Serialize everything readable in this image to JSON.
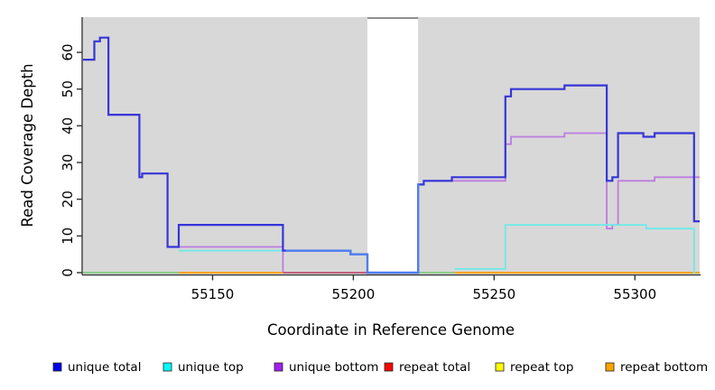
{
  "figure": {
    "background": "#ffffff",
    "plot_background": "#d8d8d8",
    "axis_color": "#333333",
    "text_color": "#000000"
  },
  "chart_data": {
    "type": "line",
    "subtype": "step-coverage",
    "title": "",
    "xlabel": "Coordinate in Reference Genome",
    "ylabel": "Read Coverage Depth",
    "xlim": [
      55104,
      55323
    ],
    "ylim": [
      0,
      69.6
    ],
    "x_ticks": [
      55150,
      55200,
      55250,
      55300
    ],
    "y_ticks": [
      0,
      10,
      20,
      30,
      40,
      50,
      60
    ],
    "grid": false,
    "legend_position": "bottom",
    "masked_region": {
      "from": 55205,
      "to": 55223,
      "fill": "#ffffff",
      "top_edge_color": "#8f8f8f"
    },
    "zero_line_segments": [
      {
        "from": 55104,
        "to": 55138,
        "color": "#8ccb8c",
        "note": "unique top + repeat top overlap at 0"
      },
      {
        "from": 55138,
        "to": 55175,
        "color": "#ffa500",
        "note": "repeat lines at 0"
      },
      {
        "from": 55175,
        "to": 55205,
        "color": "#c2607e",
        "note": "unique bottom + repeat total overlap at 0"
      },
      {
        "from": 55223,
        "to": 55236,
        "color": "#8ccb8c",
        "note": "unique top + repeat top overlap at 0"
      },
      {
        "from": 55236,
        "to": 55323,
        "color": "#ffa500",
        "note": "repeat lines at 0"
      }
    ],
    "series": [
      {
        "name": "unique bottom",
        "line_color": "#bc7ce0",
        "line_width": 1.8,
        "steps": [
          [
            55104,
            null
          ],
          [
            55138,
            7
          ],
          [
            55175,
            0
          ],
          [
            55176,
            null
          ],
          [
            55223,
            24
          ],
          [
            55225,
            25
          ],
          [
            55254,
            35
          ],
          [
            55256,
            37
          ],
          [
            55275,
            38
          ],
          [
            55290,
            12
          ],
          [
            55292,
            13
          ],
          [
            55294,
            25
          ],
          [
            55307,
            26
          ],
          [
            55323,
            26
          ]
        ]
      },
      {
        "name": "unique top",
        "line_color": "#6ceaea",
        "line_width": 1.8,
        "steps": [
          [
            55104,
            null
          ],
          [
            55138,
            6
          ],
          [
            55199,
            5
          ],
          [
            55205,
            null
          ],
          [
            55236,
            1
          ],
          [
            55254,
            13
          ],
          [
            55304,
            12
          ],
          [
            55321,
            0
          ],
          [
            55321.5,
            0
          ]
        ]
      },
      {
        "name": "unique total",
        "line_color": "#3535d8",
        "line_width": 2.2,
        "steps": [
          [
            55104,
            58
          ],
          [
            55108,
            63
          ],
          [
            55110,
            64
          ],
          [
            55113,
            43
          ],
          [
            55124,
            26
          ],
          [
            55125,
            27
          ],
          [
            55134,
            7
          ],
          [
            55138,
            13
          ],
          [
            55175,
            6
          ],
          [
            55199,
            5
          ],
          [
            55205,
            0
          ],
          [
            55223,
            24
          ],
          [
            55225,
            25
          ],
          [
            55235,
            26
          ],
          [
            55254,
            48
          ],
          [
            55256,
            50
          ],
          [
            55275,
            51
          ],
          [
            55290,
            25
          ],
          [
            55292,
            26
          ],
          [
            55294,
            38
          ],
          [
            55303,
            37
          ],
          [
            55307,
            38
          ],
          [
            55321,
            14
          ],
          [
            55323,
            14
          ]
        ],
        "style_overrides": [
          {
            "from": 55176,
            "to": 55223.5,
            "color": "#4d7ef2"
          }
        ]
      }
    ],
    "legend": [
      {
        "label": "unique total",
        "color": "#0000ee"
      },
      {
        "label": "unique top",
        "color": "#00ffff"
      },
      {
        "label": "unique bottom",
        "color": "#a020f0"
      },
      {
        "label": "repeat total",
        "color": "#ff0000"
      },
      {
        "label": "repeat top",
        "color": "#ffff00"
      },
      {
        "label": "repeat bottom",
        "color": "#ffa500"
      }
    ]
  }
}
